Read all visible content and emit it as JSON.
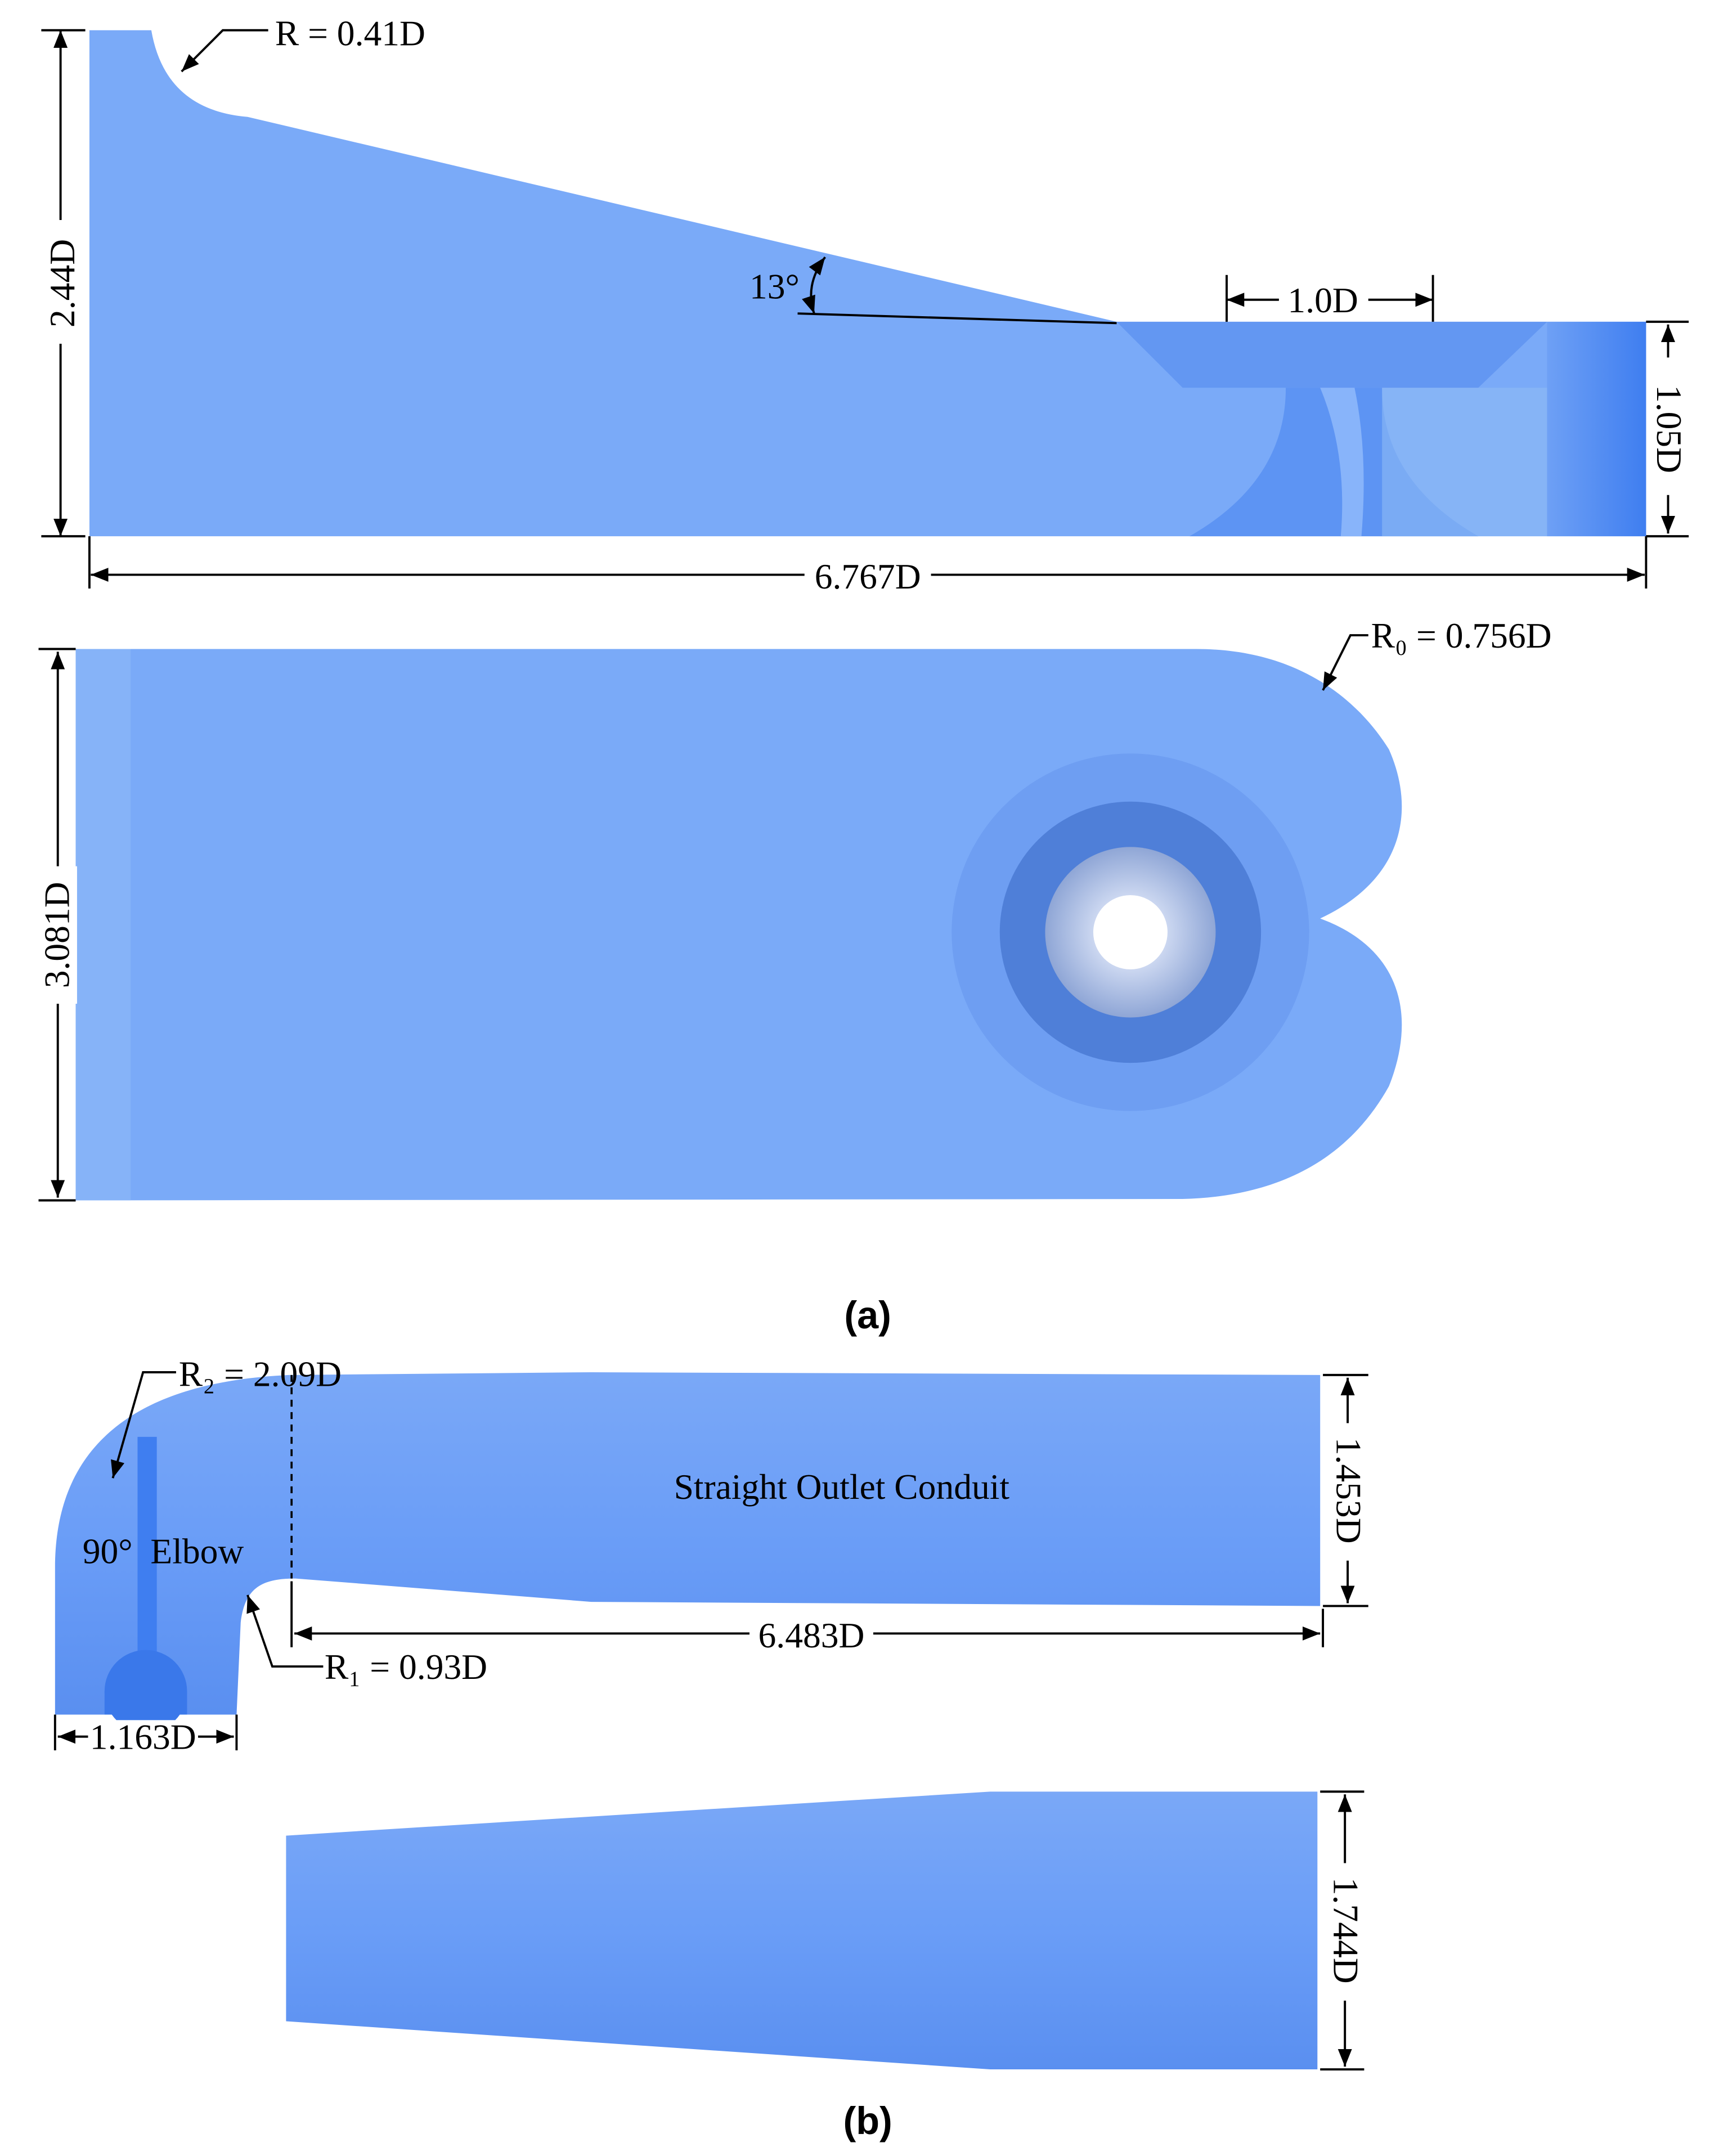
{
  "figure_a": {
    "side_view": {
      "radius_label": "R = 0.41D",
      "height_label": "2.44D",
      "angle_label": "13°",
      "throat_label": "1.0D",
      "outlet_height_label": "1.05D",
      "length_label": "6.767D"
    },
    "top_view": {
      "radius_label": "R₀ = 0.756D",
      "width_label": "3.081D"
    },
    "caption": "(a)"
  },
  "figure_b": {
    "side_view": {
      "outer_radius_label": "R₂ = 2.09D",
      "elbow_label": "90°  Elbow",
      "conduit_label": "Straight Outlet Conduit",
      "height_label": "1.453D",
      "length_label": "6.483D",
      "inner_radius_label": "R₁ = 0.93D",
      "inlet_width_label": "1.163D"
    },
    "top_view": {
      "width_label": "1.744D"
    },
    "caption": "(b)"
  }
}
